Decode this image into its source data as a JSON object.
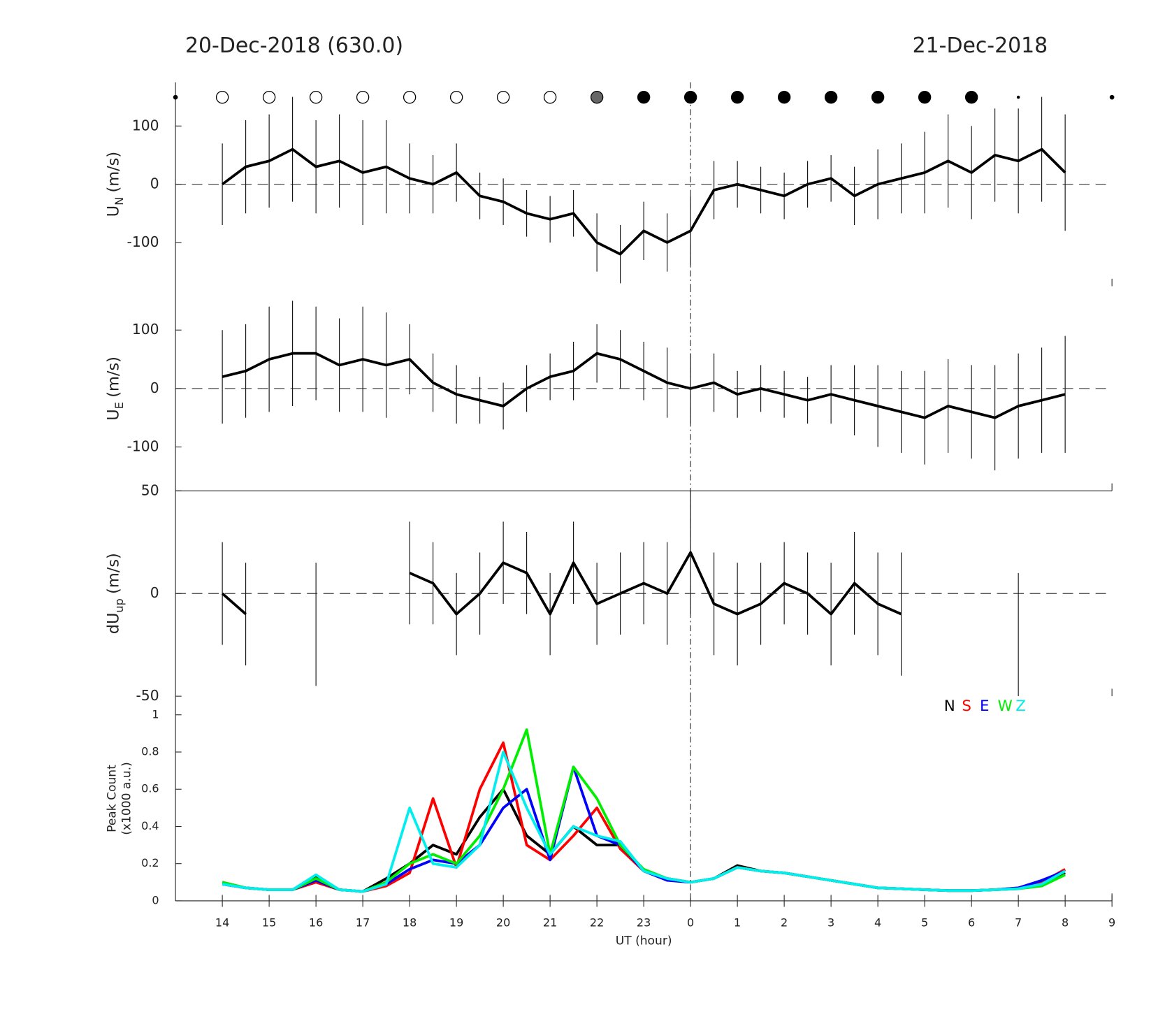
{
  "chart_data": [
    {
      "type": "errorbar",
      "title": "20-Dec-2018 (630.0)",
      "title_right": "21-Dec-2018",
      "ylabel": "U",
      "ylabel_sub": "N",
      "ylabel_unit": "(m/s)",
      "xlim": [
        13,
        33
      ],
      "ylim": [
        -175,
        175
      ],
      "yticks": [
        -100,
        0,
        100
      ],
      "zero_line": 0,
      "midnight": 24,
      "sky": {
        "x": [
          13,
          14,
          15,
          16,
          17,
          18,
          19,
          20,
          21,
          22,
          23,
          24,
          25,
          26,
          27,
          28,
          29,
          30,
          31,
          33
        ],
        "colors": [
          "#000000",
          "#ffffff",
          "#ffffff",
          "#ffffff",
          "#ffffff",
          "#ffffff",
          "#ffffff",
          "#ffffff",
          "#ffffff",
          "#666666",
          "#000000",
          "#000000",
          "#000000",
          "#000000",
          "#000000",
          "#000000",
          "#000000",
          "#000000",
          "#000000",
          "#000000"
        ],
        "sizes": [
          2.5,
          8,
          8,
          8,
          8,
          8,
          8,
          8,
          8,
          8,
          8,
          8,
          8,
          8,
          8,
          8,
          8,
          8,
          1.5,
          2.5
        ]
      },
      "x": [
        14,
        14.5,
        15,
        15.5,
        16,
        16.5,
        17,
        17.5,
        18,
        18.5,
        19,
        19.5,
        20,
        20.5,
        21,
        21.5,
        22,
        22.5,
        23,
        23.5,
        24,
        24.5,
        25,
        25.5,
        26,
        26.5,
        27,
        27.5,
        28,
        28.5,
        29,
        29.5,
        30,
        30.5,
        31,
        31.5,
        32
      ],
      "series": [
        {
          "color": "#000000",
          "values": [
            0,
            30,
            40,
            60,
            30,
            40,
            20,
            30,
            10,
            0,
            20,
            -20,
            -30,
            -50,
            -60,
            -50,
            -100,
            -120,
            -80,
            -100,
            -80,
            -10,
            0,
            -10,
            -20,
            0,
            10,
            -20,
            0,
            10,
            20,
            40,
            20,
            50,
            40,
            60,
            20
          ],
          "errors": [
            70,
            80,
            80,
            90,
            80,
            80,
            90,
            80,
            60,
            50,
            50,
            40,
            40,
            40,
            40,
            40,
            50,
            50,
            50,
            50,
            60,
            50,
            40,
            40,
            40,
            40,
            40,
            50,
            60,
            60,
            70,
            80,
            80,
            80,
            90,
            90,
            100
          ]
        }
      ]
    },
    {
      "type": "errorbar",
      "ylabel": "U",
      "ylabel_sub": "E",
      "ylabel_unit": "(m/s)",
      "xlim": [
        13,
        33
      ],
      "ylim": [
        -175,
        175
      ],
      "yticks": [
        -100,
        0,
        100
      ],
      "zero_line": 0,
      "midnight": 24,
      "x": [
        14,
        14.5,
        15,
        15.5,
        16,
        16.5,
        17,
        17.5,
        18,
        18.5,
        19,
        19.5,
        20,
        20.5,
        21,
        21.5,
        22,
        22.5,
        23,
        23.5,
        24,
        24.5,
        25,
        25.5,
        26,
        26.5,
        27,
        27.5,
        28,
        28.5,
        29,
        29.5,
        30,
        30.5,
        31,
        31.5,
        32
      ],
      "series": [
        {
          "color": "#000000",
          "values": [
            20,
            30,
            50,
            60,
            60,
            40,
            50,
            40,
            50,
            10,
            -10,
            -20,
            -30,
            0,
            20,
            30,
            60,
            50,
            30,
            10,
            0,
            10,
            -10,
            0,
            -10,
            -20,
            -10,
            -20,
            -30,
            -40,
            -50,
            -30,
            -40,
            -50,
            -30,
            -20,
            -10
          ],
          "errors": [
            80,
            80,
            90,
            90,
            80,
            80,
            90,
            90,
            60,
            50,
            50,
            40,
            40,
            40,
            40,
            50,
            50,
            50,
            50,
            60,
            60,
            50,
            40,
            40,
            40,
            40,
            50,
            60,
            70,
            70,
            80,
            80,
            80,
            90,
            90,
            90,
            100
          ]
        }
      ]
    },
    {
      "type": "errorbar",
      "ylabel": "dU",
      "ylabel_sub": "up",
      "ylabel_unit": "(m/s)",
      "xlim": [
        13,
        33
      ],
      "ylim": [
        -50,
        50
      ],
      "yticks": [
        -50,
        0,
        50
      ],
      "zero_line": 0,
      "midnight": 24,
      "x": [
        14,
        14.5,
        15,
        15.5,
        16,
        16.5,
        17,
        17.5,
        18,
        18.5,
        19,
        19.5,
        20,
        20.5,
        21,
        21.5,
        22,
        22.5,
        23,
        23.5,
        24,
        24.5,
        25,
        25.5,
        26,
        26.5,
        27,
        27.5,
        28,
        28.5,
        29,
        29.5,
        30,
        30.5,
        31,
        31.5,
        32
      ],
      "series": [
        {
          "color": "#000000",
          "values": [
            0,
            -10,
            null,
            null,
            -15,
            null,
            null,
            null,
            10,
            5,
            -10,
            0,
            15,
            10,
            -10,
            15,
            -5,
            0,
            5,
            0,
            20,
            -5,
            -10,
            -5,
            5,
            0,
            -10,
            5,
            -5,
            -10,
            null,
            null,
            null,
            null,
            -20,
            null,
            null
          ],
          "errors": [
            25,
            25,
            null,
            null,
            30,
            null,
            null,
            null,
            25,
            20,
            20,
            20,
            20,
            20,
            20,
            20,
            20,
            20,
            20,
            25,
            30,
            25,
            25,
            20,
            20,
            20,
            25,
            25,
            25,
            30,
            null,
            null,
            null,
            null,
            30,
            null,
            null
          ]
        }
      ]
    },
    {
      "type": "line",
      "ylabel": "Peak Count",
      "ylabel2": "(x1000 a.u.)",
      "xlabel": "UT (hour)",
      "xlim": [
        13,
        33
      ],
      "ylim": [
        0,
        1.1
      ],
      "yticks": [
        0,
        0.2,
        0.4,
        0.6,
        0.8,
        1
      ],
      "midnight": 24,
      "xticks": [
        14,
        15,
        16,
        17,
        18,
        19,
        20,
        21,
        22,
        23,
        {
          "value": 24,
          "label": "0"
        },
        {
          "value": 25,
          "label": "1"
        },
        {
          "value": 26,
          "label": "2"
        },
        {
          "value": 27,
          "label": "3"
        },
        {
          "value": 28,
          "label": "4"
        },
        {
          "value": 29,
          "label": "5"
        },
        {
          "value": 30,
          "label": "6"
        },
        {
          "value": 31,
          "label": "7"
        },
        {
          "value": 32,
          "label": "8"
        },
        {
          "value": 33,
          "label": "9"
        }
      ],
      "x": [
        14,
        14.5,
        15,
        15.5,
        16,
        16.5,
        17,
        17.5,
        18,
        18.5,
        19,
        19.5,
        20,
        20.5,
        21,
        21.5,
        22,
        22.5,
        23,
        23.5,
        24,
        24.5,
        25,
        25.5,
        26,
        26.5,
        27,
        27.5,
        28,
        28.5,
        29,
        29.5,
        30,
        30.5,
        31,
        31.5,
        32
      ],
      "series": [
        {
          "name": "N",
          "color": "#000000",
          "values": [
            0.09,
            0.07,
            0.06,
            0.06,
            0.13,
            0.06,
            0.05,
            0.12,
            0.2,
            0.3,
            0.25,
            0.45,
            0.6,
            0.35,
            0.25,
            0.4,
            0.3,
            0.3,
            0.16,
            0.12,
            0.1,
            0.12,
            0.19,
            0.16,
            0.15,
            0.13,
            0.11,
            0.09,
            0.07,
            0.065,
            0.06,
            0.055,
            0.055,
            0.06,
            0.065,
            0.09,
            0.15
          ]
        },
        {
          "name": "S",
          "color": "#ff0000",
          "values": [
            0.1,
            0.07,
            0.06,
            0.06,
            0.1,
            0.06,
            0.05,
            0.08,
            0.15,
            0.55,
            0.18,
            0.6,
            0.85,
            0.3,
            0.22,
            0.35,
            0.5,
            0.28,
            0.16,
            0.12,
            0.1,
            0.12,
            0.18,
            0.16,
            0.15,
            0.13,
            0.11,
            0.09,
            0.07,
            0.065,
            0.06,
            0.055,
            0.055,
            0.06,
            0.07,
            0.1,
            0.17
          ]
        },
        {
          "name": "E",
          "color": "#0000ff",
          "values": [
            0.09,
            0.07,
            0.06,
            0.06,
            0.11,
            0.06,
            0.05,
            0.09,
            0.17,
            0.22,
            0.2,
            0.3,
            0.5,
            0.6,
            0.22,
            0.72,
            0.35,
            0.3,
            0.16,
            0.11,
            0.1,
            0.12,
            0.18,
            0.16,
            0.15,
            0.13,
            0.11,
            0.09,
            0.07,
            0.065,
            0.06,
            0.055,
            0.055,
            0.06,
            0.07,
            0.11,
            0.16
          ]
        },
        {
          "name": "W",
          "color": "#00ee00",
          "values": [
            0.1,
            0.07,
            0.06,
            0.06,
            0.12,
            0.06,
            0.05,
            0.1,
            0.2,
            0.25,
            0.2,
            0.35,
            0.6,
            0.92,
            0.25,
            0.72,
            0.55,
            0.3,
            0.17,
            0.12,
            0.1,
            0.12,
            0.18,
            0.16,
            0.15,
            0.13,
            0.11,
            0.09,
            0.07,
            0.065,
            0.06,
            0.055,
            0.055,
            0.06,
            0.065,
            0.08,
            0.14
          ]
        },
        {
          "name": "Z",
          "color": "#00eeee",
          "values": [
            0.09,
            0.07,
            0.06,
            0.06,
            0.14,
            0.06,
            0.05,
            0.09,
            0.5,
            0.2,
            0.18,
            0.3,
            0.8,
            0.5,
            0.25,
            0.4,
            0.35,
            0.32,
            0.16,
            0.12,
            0.1,
            0.12,
            0.18,
            0.16,
            0.15,
            0.13,
            0.11,
            0.09,
            0.07,
            0.065,
            0.06,
            0.055,
            0.055,
            0.06,
            0.065,
            0.09,
            0.16
          ]
        }
      ]
    }
  ]
}
